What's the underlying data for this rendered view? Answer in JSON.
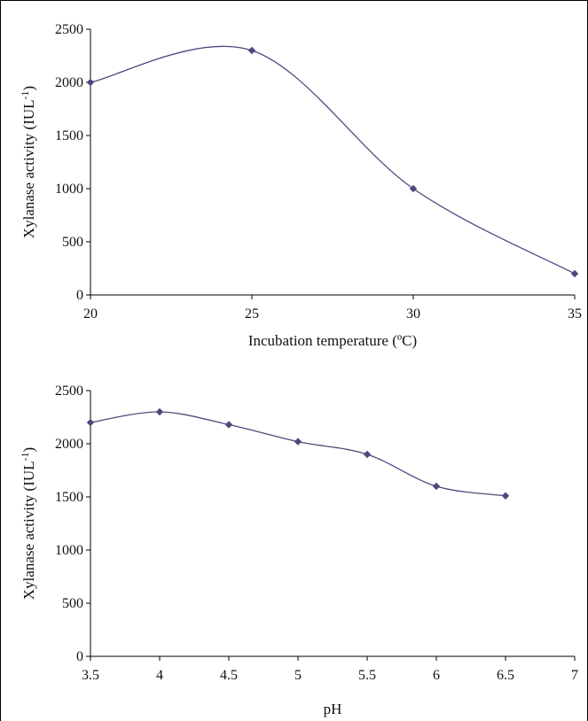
{
  "chart_data": [
    {
      "type": "line",
      "title": "",
      "xlabel": "Incubation temperature (ºC)",
      "ylabel_main": "Xylanase activity (IUL",
      "ylabel_sup": "-1",
      "ylabel_close": ")",
      "xlim": [
        20,
        35
      ],
      "ylim": [
        0,
        2500
      ],
      "x_ticks": [
        20,
        25,
        30,
        35
      ],
      "y_ticks": [
        0,
        500,
        1000,
        1500,
        2000,
        2500
      ],
      "x_tick_labels": [
        "20",
        "25",
        "30",
        "35"
      ],
      "y_tick_labels": [
        "0",
        "500",
        "1000",
        "1500",
        "2000",
        "2500"
      ],
      "grid": false,
      "legend": "none",
      "series": [
        {
          "x": [
            20,
            25,
            30,
            35
          ],
          "values": [
            2000,
            2300,
            1000,
            200
          ],
          "color": "#4a4a7c"
        }
      ]
    },
    {
      "type": "line",
      "title": "",
      "xlabel": "pH",
      "ylabel_main": "Xylanase activity (IUL",
      "ylabel_sup": "-1",
      "ylabel_close": ")",
      "xlim": [
        3.5,
        7
      ],
      "ylim": [
        0,
        2500
      ],
      "x_ticks": [
        3.5,
        4,
        4.5,
        5,
        5.5,
        6,
        6.5,
        7
      ],
      "y_ticks": [
        0,
        500,
        1000,
        1500,
        2000,
        2500
      ],
      "x_tick_labels": [
        "3.5",
        "4",
        "4.5",
        "5",
        "5.5",
        "6",
        "6.5",
        "7"
      ],
      "y_tick_labels": [
        "0",
        "500",
        "1000",
        "1500",
        "2000",
        "2500"
      ],
      "grid": false,
      "legend": "none",
      "series": [
        {
          "x": [
            3.5,
            4,
            4.5,
            5,
            5.5,
            6,
            6.5
          ],
          "values": [
            2200,
            2300,
            2180,
            2020,
            1900,
            1600,
            1510
          ],
          "color": "#4a4a7c"
        }
      ]
    }
  ]
}
